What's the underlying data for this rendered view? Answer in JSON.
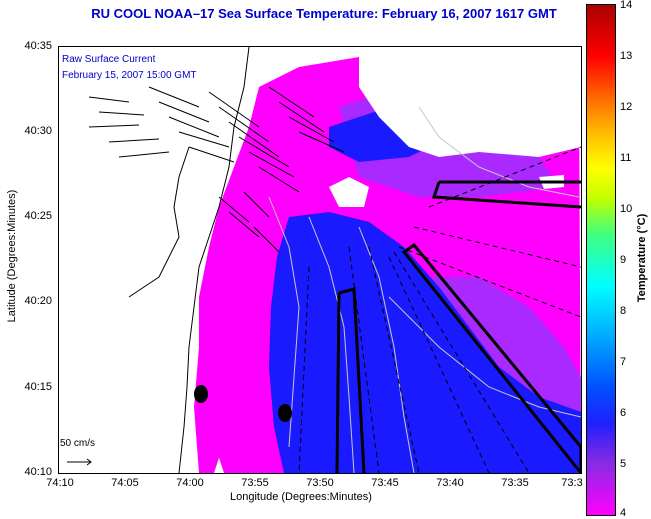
{
  "title": "RU COOL  NOAA–17  Sea Surface Temperature:  February 16, 2007 1617 GMT",
  "legend": {
    "title": "Raw Surface Current",
    "time": "February 15, 2007 15:00 GMT",
    "scale": "50 cm/s"
  },
  "axes": {
    "x_title": "Longitude (Degrees:Minutes)",
    "y_title": "Latitude (Degrees:Minutes)",
    "x_ticks": [
      "74:10",
      "74:05",
      "74:00",
      "73:55",
      "73:50",
      "73:45",
      "73:40",
      "73:35",
      "73:3"
    ],
    "y_ticks": [
      "40:35",
      "40:30",
      "40:25",
      "40:20",
      "40:15",
      "40:10"
    ]
  },
  "colorbar": {
    "title": "Temperature (°C)",
    "ticks": [
      "14",
      "13",
      "12",
      "11",
      "10",
      "9",
      "8",
      "7",
      "6",
      "5",
      "4"
    ],
    "range": [
      4,
      14
    ]
  },
  "colors": {
    "title": "#0000cc",
    "warm_magenta": "#ff00ff",
    "cold_blue": "#1a1aff",
    "land": "#ffffff"
  }
}
